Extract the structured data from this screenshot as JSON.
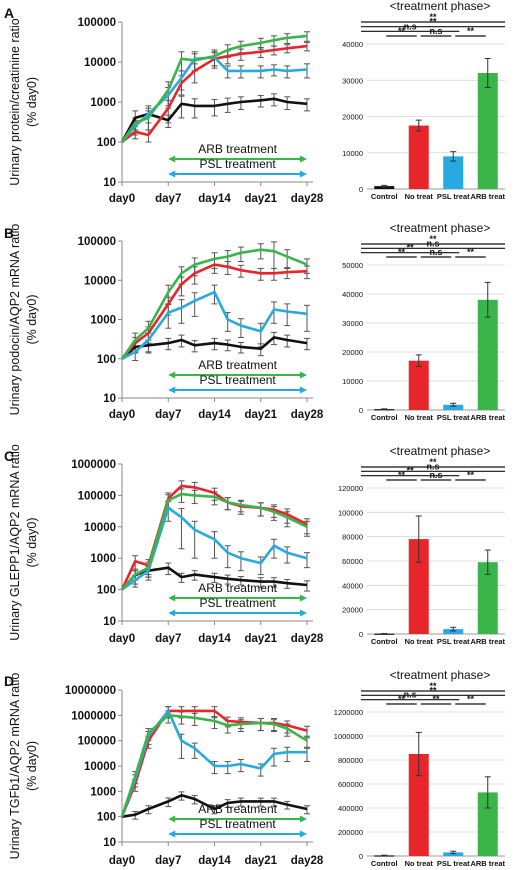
{
  "legend_colors": {
    "control": "#111111",
    "no_treat": "#e8252a",
    "psl_treat": "#27a9e1",
    "arb_treat": "#3ab54a"
  },
  "chart_data": [
    {
      "panel": "A",
      "type": "line",
      "ylabel": "Urinary protein/creatinine ratio",
      "ylabel2": "(% day0)",
      "yscale": "log",
      "ylim": [
        10,
        100000
      ],
      "yticks": [
        "10",
        "100",
        "1000",
        "10000",
        "100000"
      ],
      "x": [
        0,
        2,
        4,
        7,
        9,
        11,
        14,
        16,
        18,
        21,
        23,
        25,
        28
      ],
      "xticks": [
        "day0",
        "day7",
        "day14",
        "day21",
        "day28"
      ],
      "annotations": [
        "ARB treatment",
        "PSL treatment"
      ],
      "series": [
        {
          "key": "control",
          "color": "#111111",
          "values": [
            100,
            400,
            500,
            350,
            900,
            800,
            800,
            900,
            1000,
            1100,
            1200,
            1000,
            900
          ],
          "err": [
            0,
            200,
            200,
            120,
            500,
            400,
            350,
            350,
            350,
            350,
            400,
            350,
            300
          ]
        },
        {
          "key": "no_treat",
          "color": "#e8252a",
          "values": [
            100,
            180,
            150,
            700,
            3000,
            6000,
            12000,
            14000,
            16000,
            18000,
            20000,
            22000,
            25000
          ],
          "err": [
            0,
            60,
            50,
            400,
            1500,
            3000,
            5000,
            5000,
            5000,
            5000,
            5000,
            5000,
            6000
          ]
        },
        {
          "key": "psl_treat",
          "color": "#27a9e1",
          "values": [
            100,
            250,
            500,
            1500,
            4000,
            12000,
            13000,
            6000,
            6000,
            6000,
            6500,
            6000,
            6500
          ],
          "err": [
            0,
            100,
            300,
            800,
            2000,
            6000,
            5000,
            2000,
            2000,
            2000,
            2000,
            2000,
            2500
          ]
        },
        {
          "key": "arb_treat",
          "color": "#3ab54a",
          "values": [
            100,
            300,
            400,
            2000,
            12000,
            11000,
            14000,
            20000,
            25000,
            30000,
            35000,
            40000,
            45000
          ],
          "err": [
            0,
            100,
            200,
            1200,
            6000,
            5000,
            6000,
            7000,
            8000,
            9000,
            10000,
            11000,
            12000
          ]
        }
      ]
    },
    {
      "panel": "A-bar",
      "type": "bar",
      "title": "<treatment phase>",
      "categories": [
        "Control",
        "No treat",
        "PSL treat",
        "ARB treat"
      ],
      "colors": [
        "#111111",
        "#e8252a",
        "#27a9e1",
        "#3ab54a"
      ],
      "values": [
        800,
        17500,
        9000,
        32000
      ],
      "err": [
        200,
        1500,
        1300,
        4000
      ],
      "ylim": [
        0,
        40000
      ],
      "yticks": [
        "0",
        "10000",
        "20000",
        "30000",
        "40000"
      ],
      "significance": [
        "**",
        "**",
        "n.s",
        "**",
        "n.s",
        "**"
      ]
    },
    {
      "panel": "B",
      "type": "line",
      "ylabel": "Urinary podocin/AQP2 mRNA ratio",
      "ylabel2": "(% day0)",
      "yscale": "log",
      "ylim": [
        10,
        100000
      ],
      "yticks": [
        "10",
        "100",
        "1000",
        "10000",
        "100000"
      ],
      "x": [
        0,
        2,
        4,
        7,
        9,
        11,
        14,
        16,
        18,
        21,
        23,
        25,
        28
      ],
      "xticks": [
        "day0",
        "day7",
        "day14",
        "day21",
        "day28"
      ],
      "annotations": [
        "ARB treatment",
        "PSL treatment"
      ],
      "series": [
        {
          "key": "control",
          "color": "#111111",
          "values": [
            100,
            200,
            220,
            250,
            300,
            220,
            250,
            230,
            200,
            180,
            350,
            300,
            250
          ],
          "err": [
            0,
            60,
            80,
            80,
            100,
            70,
            80,
            70,
            60,
            60,
            120,
            100,
            80
          ]
        },
        {
          "key": "no_treat",
          "color": "#e8252a",
          "values": [
            100,
            250,
            450,
            2500,
            8000,
            15000,
            25000,
            22000,
            18000,
            15000,
            15000,
            16000,
            17000
          ],
          "err": [
            0,
            100,
            200,
            1200,
            4000,
            7000,
            10000,
            8000,
            6000,
            5000,
            5000,
            5000,
            6000
          ]
        },
        {
          "key": "psl_treat",
          "color": "#27a9e1",
          "values": [
            100,
            150,
            300,
            1500,
            2000,
            3000,
            5000,
            1000,
            700,
            500,
            1800,
            1600,
            1400
          ],
          "err": [
            0,
            60,
            150,
            900,
            1200,
            1800,
            2500,
            500,
            350,
            300,
            1000,
            900,
            900
          ]
        },
        {
          "key": "arb_treat",
          "color": "#3ab54a",
          "values": [
            100,
            300,
            600,
            5000,
            15000,
            25000,
            35000,
            40000,
            50000,
            60000,
            55000,
            40000,
            25000
          ],
          "err": [
            0,
            150,
            300,
            2500,
            7000,
            12000,
            15000,
            17000,
            20000,
            25000,
            40000,
            20000,
            10000
          ]
        }
      ]
    },
    {
      "panel": "B-bar",
      "type": "bar",
      "title": "<treatment phase>",
      "categories": [
        "Control",
        "No treat",
        "PSL treat",
        "ARB treat"
      ],
      "colors": [
        "#111111",
        "#e8252a",
        "#27a9e1",
        "#3ab54a"
      ],
      "values": [
        300,
        17000,
        1800,
        38000
      ],
      "err": [
        100,
        2000,
        500,
        6000
      ],
      "ylim": [
        0,
        50000
      ],
      "yticks": [
        "0",
        "10000",
        "20000",
        "30000",
        "40000",
        "50000"
      ],
      "significance": [
        "**",
        "n.s",
        "**",
        "**",
        "n.s",
        "**"
      ]
    },
    {
      "panel": "C",
      "type": "line",
      "ylabel": "Urinary GLEPP1/AQP2 mRNA ratio",
      "ylabel2": "(% day0)",
      "yscale": "log",
      "ylim": [
        10,
        1000000
      ],
      "yticks": [
        "10",
        "100",
        "1000",
        "10000",
        "100000",
        "1000000"
      ],
      "x": [
        0,
        2,
        4,
        7,
        9,
        11,
        14,
        16,
        18,
        21,
        23,
        25,
        28
      ],
      "xticks": [
        "day0",
        "day7",
        "day14",
        "day21",
        "day28"
      ],
      "annotations": [
        "ARB treatment",
        "PSL treatment"
      ],
      "series": [
        {
          "key": "control",
          "color": "#111111",
          "values": [
            100,
            300,
            400,
            500,
            250,
            300,
            250,
            220,
            200,
            180,
            180,
            160,
            140
          ],
          "err": [
            0,
            100,
            150,
            200,
            80,
            100,
            80,
            70,
            60,
            60,
            60,
            50,
            50
          ]
        },
        {
          "key": "no_treat",
          "color": "#e8252a",
          "values": [
            100,
            800,
            600,
            80000,
            200000,
            180000,
            120000,
            60000,
            45000,
            40000,
            35000,
            25000,
            12000
          ],
          "err": [
            0,
            400,
            300,
            40000,
            90000,
            80000,
            50000,
            25000,
            20000,
            18000,
            15000,
            12000,
            6000
          ]
        },
        {
          "key": "psl_treat",
          "color": "#27a9e1",
          "values": [
            100,
            200,
            400,
            40000,
            20000,
            8000,
            4000,
            1500,
            1000,
            700,
            2500,
            1500,
            1000
          ],
          "err": [
            0,
            80,
            200,
            25000,
            18000,
            7000,
            3000,
            1000,
            600,
            400,
            1500,
            800,
            500
          ]
        },
        {
          "key": "arb_treat",
          "color": "#3ab54a",
          "values": [
            100,
            300,
            500,
            70000,
            110000,
            100000,
            90000,
            60000,
            50000,
            40000,
            30000,
            20000,
            10000
          ],
          "err": [
            0,
            150,
            250,
            35000,
            50000,
            45000,
            40000,
            25000,
            20000,
            18000,
            14000,
            10000,
            5000
          ]
        }
      ]
    },
    {
      "panel": "C-bar",
      "type": "bar",
      "title": "<treatment phase>",
      "categories": [
        "Control",
        "No treat",
        "PSL treat",
        "ARB treat"
      ],
      "colors": [
        "#111111",
        "#e8252a",
        "#27a9e1",
        "#3ab54a"
      ],
      "values": [
        300,
        78000,
        4000,
        59000
      ],
      "err": [
        100,
        19000,
        1500,
        10000
      ],
      "ylim": [
        0,
        120000
      ],
      "yticks": [
        "0",
        "20000",
        "40000",
        "60000",
        "80000",
        "100000",
        "120000"
      ],
      "significance": [
        "**",
        "n.s",
        "**",
        "**",
        "n.s",
        "**"
      ]
    },
    {
      "panel": "D",
      "type": "line",
      "ylabel": "Urinary TGFb1/AQP2 mRNA ratio",
      "ylabel2": "(% day0)",
      "yscale": "log",
      "ylim": [
        10,
        10000000
      ],
      "yticks": [
        "10",
        "100",
        "1000",
        "10000",
        "100000",
        "1000000",
        "10000000"
      ],
      "x": [
        0,
        2,
        4,
        7,
        9,
        11,
        14,
        16,
        18,
        21,
        23,
        25,
        28
      ],
      "xticks": [
        "day0",
        "day7",
        "day14",
        "day21",
        "day28"
      ],
      "annotations": [
        "ARB treatment",
        "PSL treatment"
      ],
      "series": [
        {
          "key": "control",
          "color": "#111111",
          "values": [
            100,
            120,
            200,
            400,
            700,
            500,
            200,
            350,
            400,
            400,
            400,
            300,
            200
          ],
          "err": [
            0,
            40,
            70,
            150,
            250,
            180,
            70,
            120,
            140,
            140,
            140,
            100,
            70
          ]
        },
        {
          "key": "no_treat",
          "color": "#e8252a",
          "values": [
            100,
            2000,
            100000,
            1500000,
            1500000,
            1500000,
            1500000,
            600000,
            550000,
            500000,
            500000,
            400000,
            250000
          ],
          "err": [
            0,
            1000,
            50000,
            700000,
            700000,
            700000,
            700000,
            250000,
            250000,
            250000,
            250000,
            200000,
            120000
          ]
        },
        {
          "key": "psl_treat",
          "color": "#27a9e1",
          "values": [
            100,
            3000,
            150000,
            1500000,
            100000,
            50000,
            10000,
            10000,
            12000,
            8000,
            30000,
            35000,
            35000
          ],
          "err": [
            0,
            1500,
            80000,
            700000,
            80000,
            30000,
            5000,
            5000,
            6000,
            4000,
            20000,
            20000,
            20000
          ]
        },
        {
          "key": "arb_treat",
          "color": "#3ab54a",
          "values": [
            100,
            4000,
            200000,
            1000000,
            900000,
            800000,
            600000,
            400000,
            450000,
            500000,
            450000,
            300000,
            100000
          ],
          "err": [
            0,
            2000,
            100000,
            500000,
            450000,
            400000,
            300000,
            200000,
            220000,
            250000,
            220000,
            150000,
            50000
          ]
        }
      ]
    },
    {
      "panel": "D-bar",
      "type": "bar",
      "title": "<treatment phase>",
      "categories": [
        "Control",
        "No treat",
        "PSL treat",
        "ARB treat"
      ],
      "colors": [
        "#111111",
        "#e8252a",
        "#27a9e1",
        "#3ab54a"
      ],
      "values": [
        5000,
        850000,
        30000,
        530000
      ],
      "err": [
        2000,
        180000,
        10000,
        130000
      ],
      "ylim": [
        0,
        1200000
      ],
      "yticks": [
        "0",
        "200000",
        "400000",
        "600000",
        "800000",
        "1000000",
        "1200000"
      ],
      "significance": [
        "**",
        "**",
        "n.s",
        "**",
        "**",
        "**"
      ]
    }
  ]
}
